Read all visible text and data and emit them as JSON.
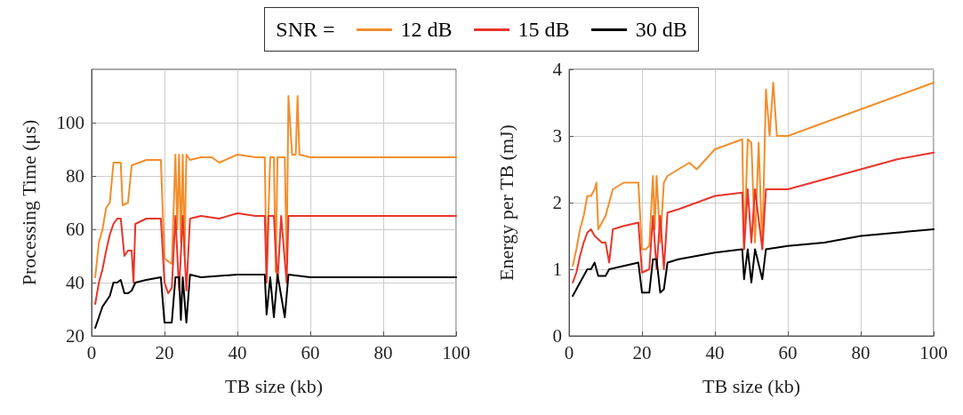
{
  "chart_data": [
    {
      "type": "line",
      "xlabel": "TB size (kb)",
      "ylabel": "Processing Time (μs)",
      "legend_title": "SNR =",
      "legend": "top",
      "grid": true,
      "marker": "none",
      "line_style": "solid",
      "xlim": [
        0,
        100
      ],
      "xticks": [
        0,
        20,
        40,
        60,
        80,
        100
      ],
      "ylim": [
        20,
        120
      ],
      "yticks": [
        20,
        40,
        60,
        80,
        100
      ],
      "series": [
        {
          "name": "12 dB",
          "color": "#f28e2b",
          "x": [
            1,
            2,
            3,
            4,
            5,
            6,
            8,
            8.5,
            10,
            11,
            13,
            15,
            19,
            20,
            22,
            23,
            23.5,
            24,
            24.5,
            25,
            25.5,
            26,
            27,
            30,
            33,
            35,
            40,
            45,
            47.5,
            48,
            49,
            50,
            50.5,
            51,
            53,
            53.5,
            54,
            55,
            56,
            56.5,
            57,
            60,
            70,
            80,
            90,
            100
          ],
          "values": [
            42,
            55,
            60,
            68,
            70,
            85,
            85,
            69,
            70,
            84,
            85,
            86,
            86,
            49,
            47,
            88,
            60,
            88,
            55,
            88,
            50,
            88,
            86,
            87,
            87,
            85,
            88,
            87,
            87,
            43,
            87,
            87,
            44,
            87,
            87,
            48,
            110,
            88,
            88,
            110,
            88,
            87,
            87,
            87,
            87,
            87
          ]
        },
        {
          "name": "15 dB",
          "color": "#e8352b",
          "x": [
            1,
            2,
            3,
            4,
            5,
            6,
            7,
            8,
            9,
            10,
            11,
            11.5,
            12,
            15,
            19,
            20,
            21,
            22,
            23,
            24,
            25,
            26,
            27,
            30,
            35,
            40,
            45,
            47.5,
            48,
            48.5,
            50,
            51,
            52,
            53.5,
            54,
            60,
            70,
            80,
            90,
            100
          ],
          "values": [
            32,
            40,
            45,
            52,
            58,
            62,
            64,
            64,
            50,
            52,
            52,
            40,
            62,
            64,
            64,
            40,
            36,
            38,
            65,
            37,
            65,
            37,
            64,
            65,
            64,
            66,
            65,
            65,
            40,
            65,
            65,
            40,
            65,
            40,
            65,
            65,
            65,
            65,
            65,
            65
          ]
        },
        {
          "name": "30 dB",
          "color": "#000000",
          "x": [
            1,
            2,
            3,
            4,
            5,
            6,
            7,
            8,
            9,
            10,
            11,
            12,
            15,
            19,
            20,
            22,
            23,
            24,
            24.5,
            25,
            26,
            27,
            30,
            40,
            47.5,
            48,
            49,
            50,
            51,
            53,
            54,
            60,
            70,
            80,
            90,
            100
          ],
          "values": [
            23,
            27,
            31,
            33,
            35,
            40,
            40,
            41,
            36,
            36,
            37,
            40,
            41,
            42,
            25,
            25,
            42,
            42,
            26,
            42,
            25,
            43,
            42,
            43,
            43,
            28,
            42,
            27,
            43,
            27,
            43,
            42,
            42,
            42,
            42,
            42
          ]
        }
      ]
    },
    {
      "type": "line",
      "xlabel": "TB size (kb)",
      "ylabel": "Energy per TB (mJ)",
      "grid": true,
      "marker": "none",
      "line_style": "solid",
      "xlim": [
        0,
        100
      ],
      "xticks": [
        0,
        20,
        40,
        60,
        80,
        100
      ],
      "ylim": [
        0,
        4
      ],
      "yticks": [
        0,
        1,
        2,
        3,
        4
      ],
      "series": [
        {
          "color": "#f28e2b",
          "x": [
            1,
            2,
            3,
            4,
            5,
            6,
            7,
            7.5,
            8,
            9,
            10,
            11,
            12,
            15,
            19,
            20,
            21,
            22,
            23,
            23.5,
            24,
            25,
            26,
            27,
            30,
            33,
            35,
            40,
            45,
            47.5,
            48,
            49,
            50,
            51,
            52,
            53,
            54,
            55,
            56,
            57,
            60,
            65,
            70,
            75,
            80,
            85,
            90,
            95,
            100
          ],
          "values": [
            1.05,
            1.3,
            1.6,
            1.8,
            2.1,
            2.1,
            2.2,
            2.3,
            1.6,
            1.7,
            1.8,
            2.0,
            2.2,
            2.3,
            2.3,
            1.3,
            1.3,
            1.35,
            2.4,
            1.6,
            2.4,
            1.4,
            2.3,
            2.4,
            2.5,
            2.6,
            2.5,
            2.8,
            2.9,
            2.95,
            1.3,
            2.95,
            2.9,
            1.4,
            2.9,
            1.3,
            3.7,
            3.0,
            3.8,
            3.0,
            3.0,
            3.1,
            3.2,
            3.3,
            3.4,
            3.5,
            3.6,
            3.7,
            3.8
          ]
        },
        {
          "color": "#e8352b",
          "x": [
            1,
            2,
            3,
            4,
            5,
            6,
            7,
            8,
            9,
            10,
            11,
            12,
            15,
            19,
            20,
            22,
            23,
            24,
            25,
            26,
            27,
            30,
            40,
            47.5,
            48,
            49,
            50,
            51,
            53,
            54,
            60,
            70,
            80,
            90,
            100
          ],
          "values": [
            0.8,
            0.95,
            1.2,
            1.4,
            1.55,
            1.6,
            1.5,
            1.45,
            1.4,
            1.4,
            1.1,
            1.6,
            1.65,
            1.7,
            0.95,
            1.0,
            1.8,
            1.0,
            1.8,
            1.0,
            1.85,
            1.9,
            2.1,
            2.15,
            1.3,
            2.2,
            1.4,
            2.2,
            1.3,
            2.2,
            2.2,
            2.35,
            2.5,
            2.65,
            2.75
          ]
        },
        {
          "color": "#000000",
          "x": [
            1,
            2,
            3,
            4,
            5,
            6,
            7,
            8,
            10,
            11,
            15,
            19,
            20,
            22,
            23,
            24,
            25,
            26,
            27,
            30,
            40,
            47.5,
            48,
            49,
            50,
            51,
            53,
            54,
            60,
            70,
            80,
            90,
            100
          ],
          "values": [
            0.6,
            0.7,
            0.8,
            0.9,
            1.0,
            1.0,
            1.1,
            0.9,
            0.9,
            1.0,
            1.05,
            1.1,
            0.65,
            0.65,
            1.15,
            1.15,
            0.65,
            0.7,
            1.1,
            1.15,
            1.25,
            1.3,
            0.85,
            1.3,
            0.8,
            1.3,
            0.85,
            1.3,
            1.35,
            1.4,
            1.5,
            1.55,
            1.6
          ]
        }
      ]
    }
  ]
}
